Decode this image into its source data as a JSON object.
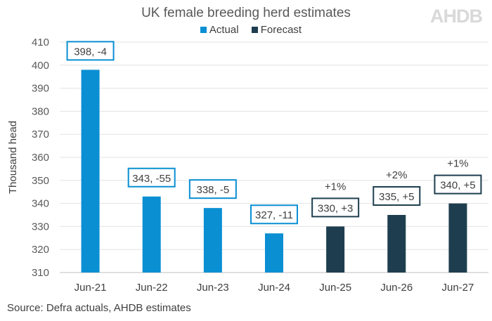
{
  "logo_text": "AHDB",
  "source": "Source: Defra actuals, AHDB estimates",
  "colors": {
    "Actual": "#0a8fd3",
    "Forecast": "#1e3e4f"
  },
  "chart_data": {
    "type": "bar",
    "title": "UK female breeding herd estimates",
    "ylabel": "Thousand head",
    "xlabel": "",
    "ylim": [
      310,
      410
    ],
    "yticks": [
      310,
      320,
      330,
      340,
      350,
      360,
      370,
      380,
      390,
      400,
      410
    ],
    "grid": true,
    "legend_placement": "top",
    "legend": [
      "Actual",
      "Forecast"
    ],
    "categories": [
      "Jun-21",
      "Jun-22",
      "Jun-23",
      "Jun-24",
      "Jun-25",
      "Jun-26",
      "Jun-27"
    ],
    "values": [
      398,
      343,
      338,
      327,
      330,
      335,
      340
    ],
    "series_type": [
      "Actual",
      "Actual",
      "Actual",
      "Actual",
      "Forecast",
      "Forecast",
      "Forecast"
    ],
    "data_labels": [
      "398, -4",
      "343, -55",
      "338, -5",
      "327, -11",
      "330, +3",
      "335, +5",
      "340, +5"
    ],
    "pct_labels": [
      "",
      "",
      "",
      "",
      "+1%",
      "+2%",
      "+1%"
    ]
  }
}
